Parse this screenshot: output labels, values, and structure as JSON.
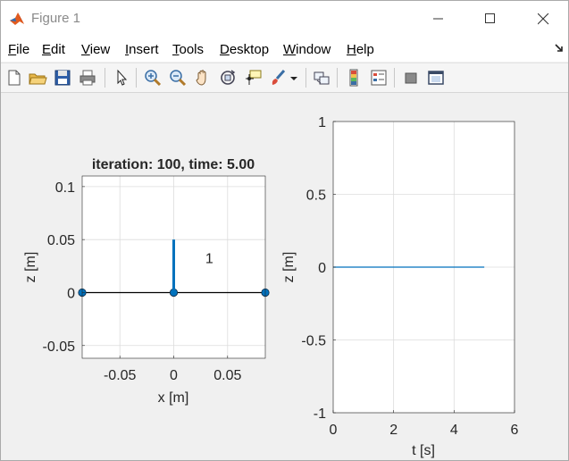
{
  "window": {
    "title": "Figure 1"
  },
  "menu": {
    "items": [
      {
        "u": "F",
        "rest": "ile"
      },
      {
        "u": "E",
        "rest": "dit"
      },
      {
        "u": "V",
        "rest": "iew"
      },
      {
        "u": "I",
        "rest": "nsert"
      },
      {
        "u": "T",
        "rest": "ools"
      },
      {
        "u": "D",
        "rest": "esktop"
      },
      {
        "u": "W",
        "rest": "indow"
      },
      {
        "u": "H",
        "rest": "elp"
      }
    ]
  },
  "toolbar": {
    "icons": [
      "new-figure-icon",
      "open-file-icon",
      "save-icon",
      "print-icon",
      "pointer-icon",
      "zoom-in-icon",
      "zoom-out-icon",
      "pan-hand-icon",
      "rotate-3d-icon",
      "data-cursor-icon",
      "brush-icon",
      "brush-dropdown-icon",
      "link-plot-icon",
      "colorbar-icon",
      "legend-icon",
      "hide-plot-tools-icon",
      "show-plot-tools-icon"
    ]
  },
  "chart_data": [
    {
      "type": "scatter",
      "title": "iteration: 100, time: 5.00",
      "xlabel": "x [m]",
      "ylabel": "z [m]",
      "xlim": [
        -0.085,
        0.085
      ],
      "ylim": [
        -0.062,
        0.11
      ],
      "xticks": [
        "-0.05",
        "0",
        "0.05"
      ],
      "yticks": [
        "-0.05",
        "0",
        "0.05",
        "0.1"
      ],
      "grid": true,
      "series": [
        {
          "kind": "line",
          "x": [
            -0.085,
            0.085
          ],
          "y": [
            0,
            0
          ],
          "color": "#000000"
        },
        {
          "kind": "markers",
          "x": [
            -0.085,
            0,
            0.085
          ],
          "y": [
            0,
            0,
            0
          ],
          "color": "#0072bd"
        },
        {
          "kind": "bar",
          "x": [
            0,
            0
          ],
          "y": [
            0,
            0.05
          ],
          "color": "#0072bd"
        }
      ],
      "annotations": [
        {
          "text": "1",
          "x": 0.033,
          "y": 0.028
        }
      ]
    },
    {
      "type": "line",
      "title": "",
      "xlabel": "t [s]",
      "ylabel": "z [m]",
      "xlim": [
        0,
        6
      ],
      "ylim": [
        -1,
        1
      ],
      "xticks": [
        "0",
        "2",
        "4",
        "6"
      ],
      "yticks": [
        "-1",
        "-0.5",
        "0",
        "0.5",
        "1"
      ],
      "grid": true,
      "series": [
        {
          "kind": "line",
          "x": [
            0,
            5
          ],
          "y": [
            0,
            0
          ],
          "color": "#0072bd"
        }
      ]
    }
  ]
}
